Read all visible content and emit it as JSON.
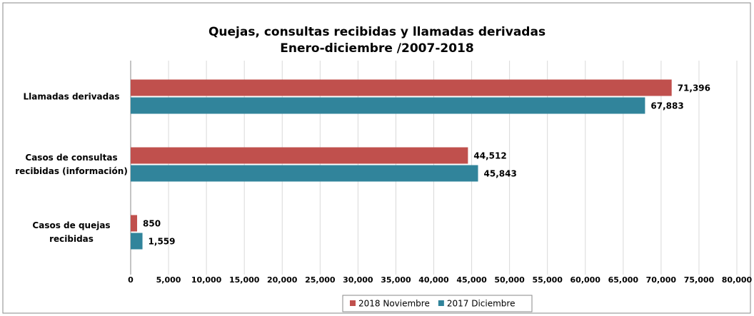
{
  "chart_data": {
    "type": "hbar",
    "title": "Quejas, consultas recibidas y llamadas derivadas",
    "subtitle": "Enero-diciembre /2007-2018",
    "categories": [
      "Llamadas derivadas",
      "Casos de consultas recibidas (información)",
      "Casos de quejas recibidas"
    ],
    "series": [
      {
        "name": "2018 Noviembre",
        "color": "#c0504d",
        "values": [
          71396,
          44512,
          850
        ],
        "value_labels": [
          "71,396",
          "44,512",
          "850"
        ]
      },
      {
        "name": "2017 Diciembre",
        "color": "#31849b",
        "values": [
          67883,
          45843,
          1559
        ],
        "value_labels": [
          "67,883",
          "45,843",
          "1,559"
        ]
      }
    ],
    "xlim": [
      0,
      80000
    ],
    "xticks": [
      0,
      {
        "value": 5000,
        "label": "5,000"
      },
      {
        "value": 10000,
        "label": "10,000"
      },
      {
        "value": 15000,
        "label": "15,000"
      },
      {
        "value": 20000,
        "label": "20,000"
      },
      {
        "value": 25000,
        "label": "25,000"
      },
      {
        "value": 30000,
        "label": "30,000"
      },
      {
        "value": 35000,
        "label": "35,000"
      },
      {
        "value": 40000,
        "label": "40,000"
      },
      {
        "value": 45000,
        "label": "45,000"
      },
      {
        "value": 50000,
        "label": "50,000"
      },
      {
        "value": 55000,
        "label": "55,000"
      },
      {
        "value": 60000,
        "label": "60,000"
      },
      {
        "value": 65000,
        "label": "65,000"
      },
      {
        "value": 70000,
        "label": "70,000"
      },
      {
        "value": 75000,
        "label": "75,000"
      },
      {
        "value": 80000,
        "label": "80,000"
      }
    ],
    "grid": true,
    "legend": "bottom"
  }
}
